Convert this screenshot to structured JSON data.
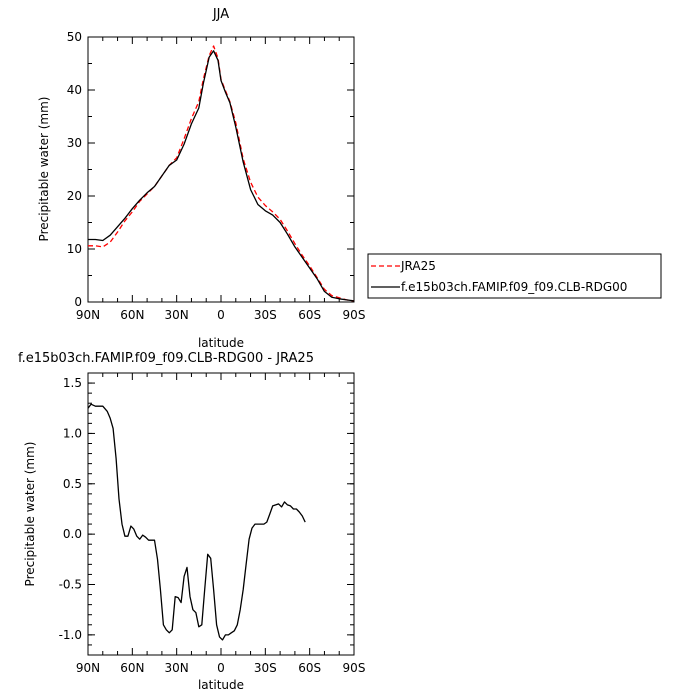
{
  "chart_data": [
    {
      "type": "line",
      "title": "JJA",
      "xlabel": "latitude",
      "ylabel": "Precipitable water (mm)",
      "x_ticks": [
        {
          "lat": 90,
          "label": "90N"
        },
        {
          "lat": 60,
          "label": "60N"
        },
        {
          "lat": 30,
          "label": "30N"
        },
        {
          "lat": 0,
          "label": "0"
        },
        {
          "lat": -30,
          "label": "30S"
        },
        {
          "lat": -60,
          "label": "60S"
        },
        {
          "lat": -90,
          "label": "90S"
        }
      ],
      "xlim": [
        90,
        -90
      ],
      "ylim": [
        0,
        50
      ],
      "y_ticks": [
        {
          "value": 0,
          "label": "0"
        },
        {
          "value": 10,
          "label": "10"
        },
        {
          "value": 20,
          "label": "20"
        },
        {
          "value": 30,
          "label": "30"
        },
        {
          "value": 40,
          "label": "40"
        },
        {
          "value": 50,
          "label": "50"
        }
      ],
      "legend_position": "right",
      "series": [
        {
          "name": "JRA25",
          "color": "#ff0000",
          "dash": "dashed",
          "points": [
            [
              90,
              10.6
            ],
            [
              85,
              10.6
            ],
            [
              80,
              10.4
            ],
            [
              75,
              11.3
            ],
            [
              70,
              13.2
            ],
            [
              65,
              15.3
            ],
            [
              60,
              17.0
            ],
            [
              55,
              19.0
            ],
            [
              50,
              20.4
            ],
            [
              45,
              21.8
            ],
            [
              40,
              23.8
            ],
            [
              35,
              25.8
            ],
            [
              30,
              27.2
            ],
            [
              25,
              30.8
            ],
            [
              20,
              34.6
            ],
            [
              15,
              37.8
            ],
            [
              12,
              42.0
            ],
            [
              8,
              46.5
            ],
            [
              5,
              48.3
            ],
            [
              2,
              46.0
            ],
            [
              0,
              42.0
            ],
            [
              -3,
              39.9
            ],
            [
              -6,
              37.8
            ],
            [
              -10,
              33.8
            ],
            [
              -15,
              27.0
            ],
            [
              -20,
              22.6
            ],
            [
              -25,
              19.8
            ],
            [
              -30,
              18.2
            ],
            [
              -35,
              17.0
            ],
            [
              -40,
              15.6
            ],
            [
              -45,
              13.4
            ],
            [
              -50,
              11.0
            ],
            [
              -55,
              8.8
            ],
            [
              -60,
              6.8
            ],
            [
              -65,
              4.6
            ],
            [
              -70,
              2.4
            ],
            [
              -75,
              1.2
            ],
            [
              -80,
              0.8
            ],
            [
              -85,
              0.4
            ],
            [
              -90,
              0.2
            ]
          ]
        },
        {
          "name": "f.e15b03ch.FAMIP.f09_f09.CLB-RDG00",
          "color": "#000000",
          "dash": "solid",
          "points": [
            [
              90,
              11.8
            ],
            [
              85,
              11.8
            ],
            [
              80,
              11.6
            ],
            [
              75,
              12.6
            ],
            [
              70,
              14.2
            ],
            [
              65,
              15.8
            ],
            [
              60,
              17.6
            ],
            [
              55,
              19.2
            ],
            [
              50,
              20.6
            ],
            [
              45,
              21.8
            ],
            [
              40,
              23.8
            ],
            [
              35,
              25.8
            ],
            [
              30,
              26.8
            ],
            [
              25,
              29.8
            ],
            [
              20,
              33.6
            ],
            [
              15,
              36.6
            ],
            [
              12,
              41.2
            ],
            [
              8,
              46.2
            ],
            [
              5,
              47.4
            ],
            [
              2,
              45.6
            ],
            [
              0,
              41.8
            ],
            [
              -3,
              39.6
            ],
            [
              -6,
              37.6
            ],
            [
              -10,
              33.0
            ],
            [
              -15,
              26.4
            ],
            [
              -20,
              21.2
            ],
            [
              -25,
              18.4
            ],
            [
              -30,
              17.2
            ],
            [
              -35,
              16.4
            ],
            [
              -40,
              15.0
            ],
            [
              -45,
              12.8
            ],
            [
              -50,
              10.4
            ],
            [
              -55,
              8.4
            ],
            [
              -60,
              6.4
            ],
            [
              -65,
              4.4
            ],
            [
              -70,
              2.0
            ],
            [
              -75,
              0.9
            ],
            [
              -80,
              0.6
            ],
            [
              -85,
              0.4
            ],
            [
              -90,
              0.2
            ]
          ]
        }
      ]
    },
    {
      "type": "line",
      "title": "f.e15b03ch.FAMIP.f09_f09.CLB-RDG00 - JRA25",
      "xlabel": "latitude",
      "ylabel": "Precipitable water (mm)",
      "x_ticks": [
        {
          "lat": 90,
          "label": "90N"
        },
        {
          "lat": 60,
          "label": "60N"
        },
        {
          "lat": 30,
          "label": "30N"
        },
        {
          "lat": 0,
          "label": "0"
        },
        {
          "lat": -30,
          "label": "30S"
        },
        {
          "lat": -60,
          "label": "60S"
        },
        {
          "lat": -90,
          "label": "90S"
        }
      ],
      "xlim": [
        90,
        -90
      ],
      "ylim": [
        -1.2,
        1.6
      ],
      "y_ticks": [
        {
          "value": 1.5,
          "label": "1.5"
        },
        {
          "value": 1.0,
          "label": "1.0"
        },
        {
          "value": 0.5,
          "label": "0.5"
        },
        {
          "value": 0.0,
          "label": "0.0"
        },
        {
          "value": -0.5,
          "label": "-0.5"
        },
        {
          "value": -1.0,
          "label": "-1.0"
        }
      ],
      "series": [
        {
          "color": "#000000",
          "dash": "solid",
          "points": [
            [
              90,
              1.25
            ],
            [
              88,
              1.29
            ],
            [
              85,
              1.27
            ],
            [
              80,
              1.27
            ],
            [
              77,
              1.22
            ],
            [
              75,
              1.15
            ],
            [
              73,
              1.05
            ],
            [
              71,
              0.75
            ],
            [
              69,
              0.35
            ],
            [
              67,
              0.1
            ],
            [
              65,
              -0.02
            ],
            [
              63,
              -0.02
            ],
            [
              61,
              0.08
            ],
            [
              59,
              0.05
            ],
            [
              57,
              -0.02
            ],
            [
              55,
              -0.05
            ],
            [
              53,
              -0.01
            ],
            [
              51,
              -0.03
            ],
            [
              49,
              -0.06
            ],
            [
              45,
              -0.06
            ],
            [
              43,
              -0.25
            ],
            [
              41,
              -0.55
            ],
            [
              39,
              -0.9
            ],
            [
              37,
              -0.95
            ],
            [
              35,
              -0.98
            ],
            [
              33,
              -0.95
            ],
            [
              31,
              -0.62
            ],
            [
              29,
              -0.63
            ],
            [
              27,
              -0.68
            ],
            [
              25,
              -0.42
            ],
            [
              23,
              -0.33
            ],
            [
              21,
              -0.62
            ],
            [
              19,
              -0.75
            ],
            [
              17,
              -0.78
            ],
            [
              15,
              -0.92
            ],
            [
              13,
              -0.9
            ],
            [
              11,
              -0.55
            ],
            [
              9,
              -0.2
            ],
            [
              7,
              -0.24
            ],
            [
              5,
              -0.55
            ],
            [
              3,
              -0.9
            ],
            [
              1,
              -1.02
            ],
            [
              -1,
              -1.05
            ],
            [
              -3,
              -1.0
            ],
            [
              -5,
              -1.0
            ],
            [
              -7,
              -0.98
            ],
            [
              -9,
              -0.96
            ],
            [
              -11,
              -0.9
            ],
            [
              -13,
              -0.75
            ],
            [
              -15,
              -0.55
            ],
            [
              -17,
              -0.3
            ],
            [
              -19,
              -0.05
            ],
            [
              -21,
              0.06
            ],
            [
              -23,
              0.1
            ],
            [
              -25,
              0.1
            ],
            [
              -27,
              0.1
            ],
            [
              -29,
              0.1
            ],
            [
              -31,
              0.12
            ],
            [
              -33,
              0.2
            ],
            [
              -35,
              0.28
            ],
            [
              -37,
              0.29
            ],
            [
              -39,
              0.3
            ],
            [
              -41,
              0.27
            ],
            [
              -43,
              0.32
            ],
            [
              -45,
              0.29
            ],
            [
              -47,
              0.28
            ],
            [
              -49,
              0.25
            ],
            [
              -51,
              0.25
            ],
            [
              -53,
              0.22
            ],
            [
              -55,
              0.18
            ],
            [
              -57,
              0.12
            ]
          ]
        }
      ]
    }
  ]
}
